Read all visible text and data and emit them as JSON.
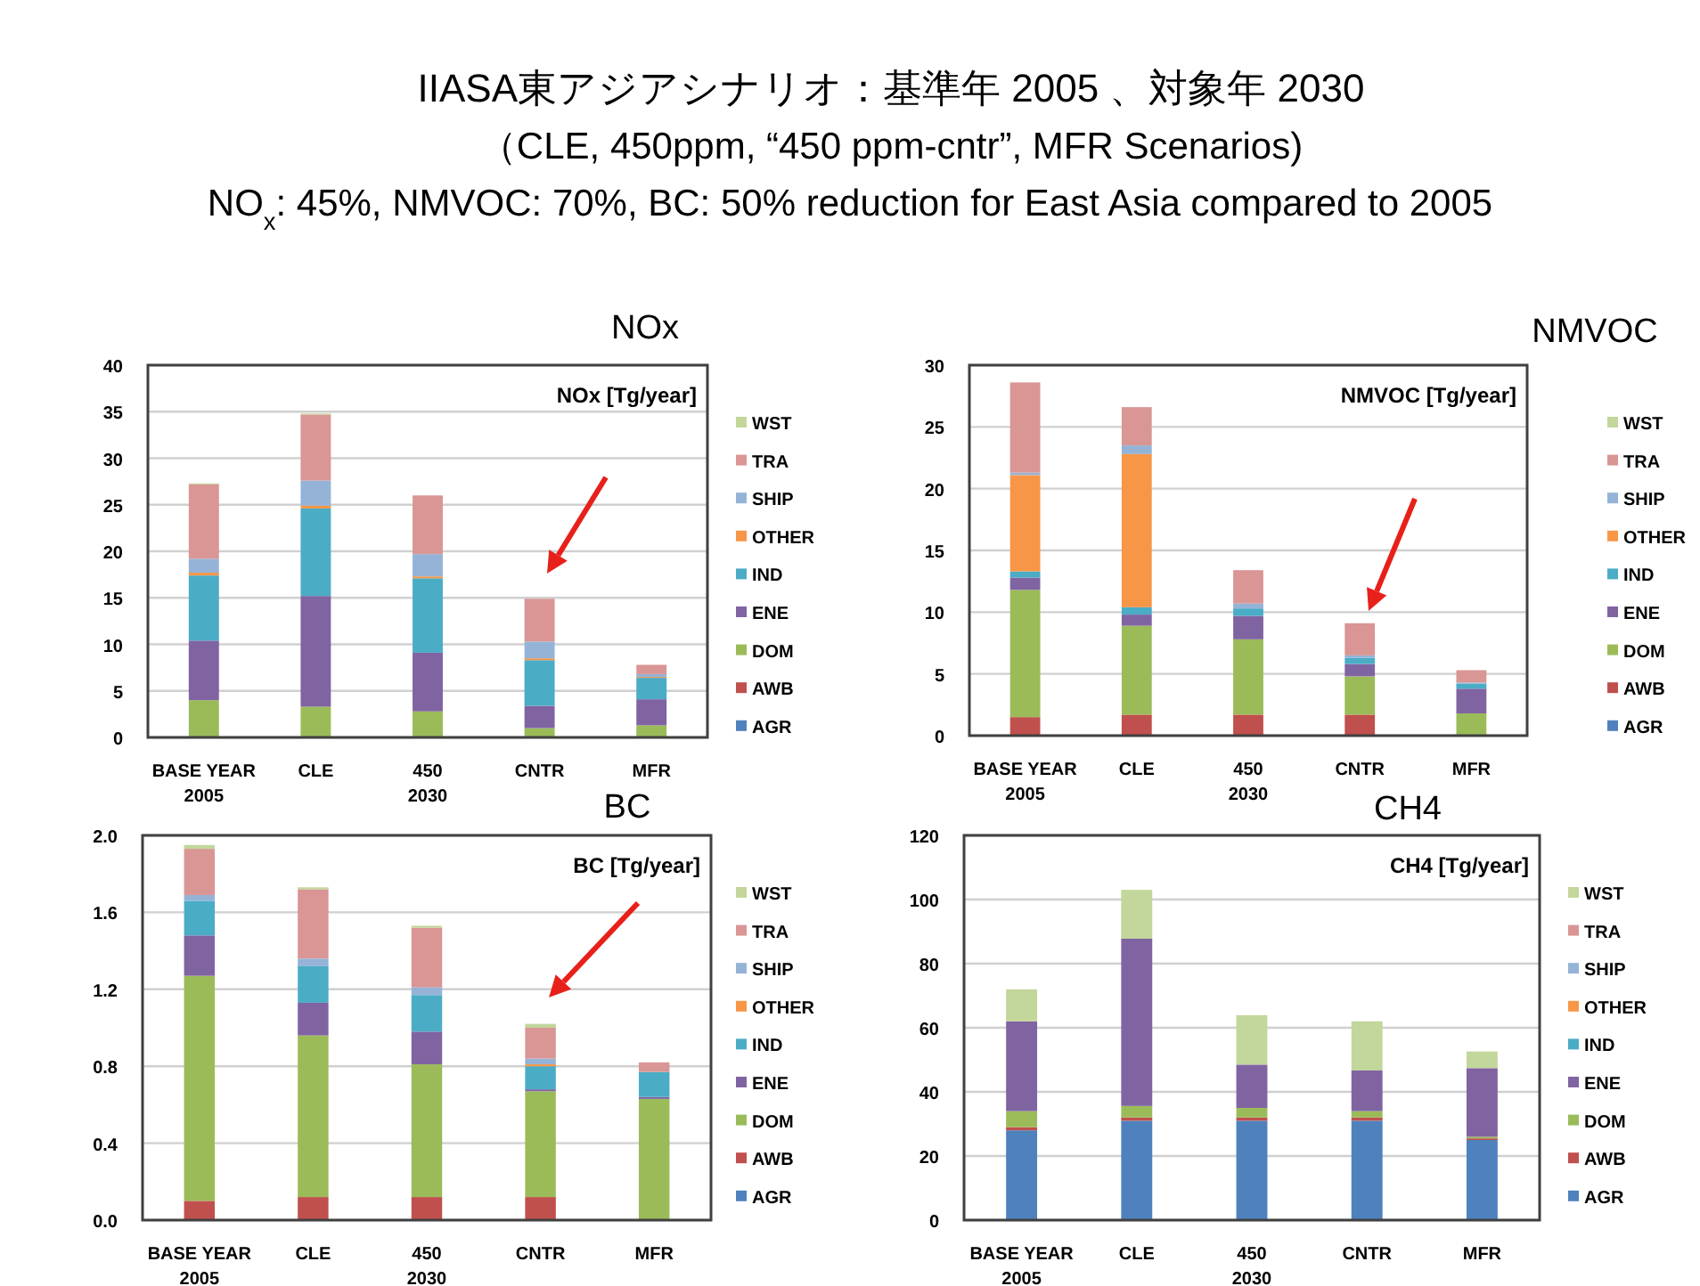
{
  "chart_data": [
    {
      "type": "other",
      "title": "IIASA東アジアシナリオ：基準年 2005 、対象年 2030",
      "subtitle": "（CLE, 450ppm, “450 ppm-cntr”, MFR Scenarios)",
      "annotations": [
        "NO$_{x}$: 45%, NMVOC: 70%, BC:  50% reduction for East Asia compared to 2005"
      ]
    },
    {
      "type": "bar",
      "stacked": true,
      "title": "NOx",
      "annotations": [
        "NOx [Tg/year]"
      ],
      "categories": [
        "BASE YEAR\n2005",
        "CLE",
        "450\n2030",
        "CNTR",
        "MFR"
      ],
      "ylim": [
        0,
        40
      ],
      "yticks": [
        0,
        5,
        10,
        15,
        20,
        25,
        30,
        35,
        40
      ],
      "grid": "y",
      "legend": "right",
      "series": [
        {
          "name": "AGR",
          "color": "#4f81bd",
          "values": [
            0,
            0,
            0,
            0,
            0
          ]
        },
        {
          "name": "AWB",
          "color": "#c0504d",
          "values": [
            0,
            0,
            0,
            0,
            0
          ]
        },
        {
          "name": "DOM",
          "color": "#9bbb59",
          "values": [
            4.0,
            3.3,
            2.8,
            1.0,
            1.3
          ]
        },
        {
          "name": "ENE",
          "color": "#8064a2",
          "values": [
            6.4,
            11.9,
            6.3,
            2.4,
            2.8
          ]
        },
        {
          "name": "IND",
          "color": "#4bacc6",
          "values": [
            7.0,
            9.4,
            8.0,
            4.9,
            2.3
          ]
        },
        {
          "name": "OTHER",
          "color": "#f79646",
          "values": [
            0.3,
            0.3,
            0.2,
            0.2,
            0.1
          ]
        },
        {
          "name": "SHIP",
          "color": "#95b3d7",
          "values": [
            1.5,
            2.7,
            2.4,
            1.8,
            0.3
          ]
        },
        {
          "name": "TRA",
          "color": "#d99694",
          "values": [
            8.0,
            7.1,
            6.3,
            4.6,
            1.0
          ]
        },
        {
          "name": "WST",
          "color": "#c3d69b",
          "values": [
            0.1,
            0.1,
            0,
            0,
            0
          ]
        }
      ]
    },
    {
      "type": "bar",
      "stacked": true,
      "title": "NMVOC",
      "annotations": [
        "NMVOC [Tg/year]"
      ],
      "categories": [
        "BASE YEAR\n2005",
        "CLE",
        "450\n2030",
        "CNTR",
        "MFR"
      ],
      "ylim": [
        0,
        30
      ],
      "yticks": [
        0,
        5,
        10,
        15,
        20,
        25,
        30
      ],
      "grid": "y",
      "legend": "right",
      "series": [
        {
          "name": "AGR",
          "color": "#4f81bd",
          "values": [
            0,
            0,
            0,
            0,
            0
          ]
        },
        {
          "name": "AWB",
          "color": "#c0504d",
          "values": [
            1.5,
            1.7,
            1.7,
            1.7,
            null
          ]
        },
        {
          "name": "DOM",
          "color": "#9bbb59",
          "values": [
            10.3,
            7.2,
            6.1,
            3.1,
            1.8
          ]
        },
        {
          "name": "ENE",
          "color": "#8064a2",
          "values": [
            1.0,
            0.9,
            1.9,
            1.0,
            2.0
          ]
        },
        {
          "name": "IND",
          "color": "#4bacc6",
          "values": [
            0.5,
            0.6,
            0.6,
            0.5,
            0.4
          ]
        },
        {
          "name": "OTHER",
          "color": "#f79646",
          "values": [
            7.8,
            12.4,
            0,
            0,
            0
          ]
        },
        {
          "name": "SHIP",
          "color": "#95b3d7",
          "values": [
            0.2,
            0.7,
            0.4,
            0.2,
            0.1
          ]
        },
        {
          "name": "TRA",
          "color": "#d99694",
          "values": [
            7.3,
            3.1,
            2.7,
            2.6,
            1.0
          ]
        },
        {
          "name": "WST",
          "color": "#c3d69b",
          "values": [
            0,
            0,
            0,
            0,
            0
          ]
        }
      ]
    },
    {
      "type": "bar",
      "stacked": true,
      "title": "BC",
      "annotations": [
        "BC [Tg/year]"
      ],
      "categories": [
        "BASE YEAR\n2005",
        "CLE",
        "450\n2030",
        "CNTR",
        "MFR"
      ],
      "ylim": [
        0,
        2.0
      ],
      "yticks": [
        {
          "value": 0,
          "label": "0.0"
        },
        {
          "value": 0.4,
          "label": "0.4"
        },
        {
          "value": 0.8,
          "label": "0.8"
        },
        {
          "value": 1.2,
          "label": "1.2"
        },
        {
          "value": 1.6,
          "label": "1.6"
        },
        {
          "value": 2.0,
          "label": "2.0"
        }
      ],
      "grid": "y",
      "legend": "right",
      "series": [
        {
          "name": "AGR",
          "color": "#4f81bd",
          "values": [
            0,
            0,
            0,
            0,
            0
          ]
        },
        {
          "name": "AWB",
          "color": "#c0504d",
          "values": [
            0.1,
            0.12,
            0.12,
            0.12,
            0
          ]
        },
        {
          "name": "DOM",
          "color": "#9bbb59",
          "values": [
            1.17,
            0.84,
            0.69,
            0.55,
            0.63
          ]
        },
        {
          "name": "ENE",
          "color": "#8064a2",
          "values": [
            0.21,
            0.17,
            0.17,
            0.01,
            0.01
          ]
        },
        {
          "name": "IND",
          "color": "#4bacc6",
          "values": [
            0.18,
            0.19,
            0.19,
            0.12,
            0.13
          ]
        },
        {
          "name": "OTHER",
          "color": "#f79646",
          "values": [
            0,
            0,
            0,
            0.01,
            0
          ]
        },
        {
          "name": "SHIP",
          "color": "#95b3d7",
          "values": [
            0.03,
            0.04,
            0.04,
            0.03,
            0
          ]
        },
        {
          "name": "TRA",
          "color": "#d99694",
          "values": [
            0.24,
            0.36,
            0.31,
            0.16,
            0.05
          ]
        },
        {
          "name": "WST",
          "color": "#c3d69b",
          "values": [
            0.02,
            0.01,
            0.01,
            0.02,
            0
          ]
        }
      ]
    },
    {
      "type": "bar",
      "stacked": true,
      "title": "CH4",
      "annotations": [
        "CH4 [Tg/year]"
      ],
      "categories": [
        "BASE YEAR\n2005",
        "CLE",
        "450\n2030",
        "CNTR",
        "MFR"
      ],
      "ylim": [
        0,
        120
      ],
      "yticks": [
        0,
        20,
        40,
        60,
        80,
        100,
        120
      ],
      "grid": "y",
      "legend": "right",
      "series": [
        {
          "name": "AGR",
          "color": "#4f81bd",
          "values": [
            28,
            31,
            31,
            31,
            25
          ]
        },
        {
          "name": "AWB",
          "color": "#c0504d",
          "values": [
            1,
            1,
            1,
            1,
            0.5
          ]
        },
        {
          "name": "DOM",
          "color": "#9bbb59",
          "values": [
            5,
            3.6,
            3,
            2,
            0.5
          ]
        },
        {
          "name": "ENE",
          "color": "#8064a2",
          "values": [
            28,
            52.2,
            13.5,
            12.7,
            21.4
          ]
        },
        {
          "name": "IND",
          "color": "#4bacc6",
          "values": [
            0,
            0,
            0,
            0,
            0
          ]
        },
        {
          "name": "OTHER",
          "color": "#f79646",
          "values": [
            0,
            0,
            0,
            0,
            0
          ]
        },
        {
          "name": "SHIP",
          "color": "#95b3d7",
          "values": [
            0,
            0,
            0,
            0,
            0
          ]
        },
        {
          "name": "TRA",
          "color": "#d99694",
          "values": [
            0,
            0,
            0,
            0,
            0
          ]
        },
        {
          "name": "WST",
          "color": "#c3d69b",
          "values": [
            10,
            15.2,
            15.4,
            15.3,
            5.2
          ]
        }
      ]
    }
  ]
}
